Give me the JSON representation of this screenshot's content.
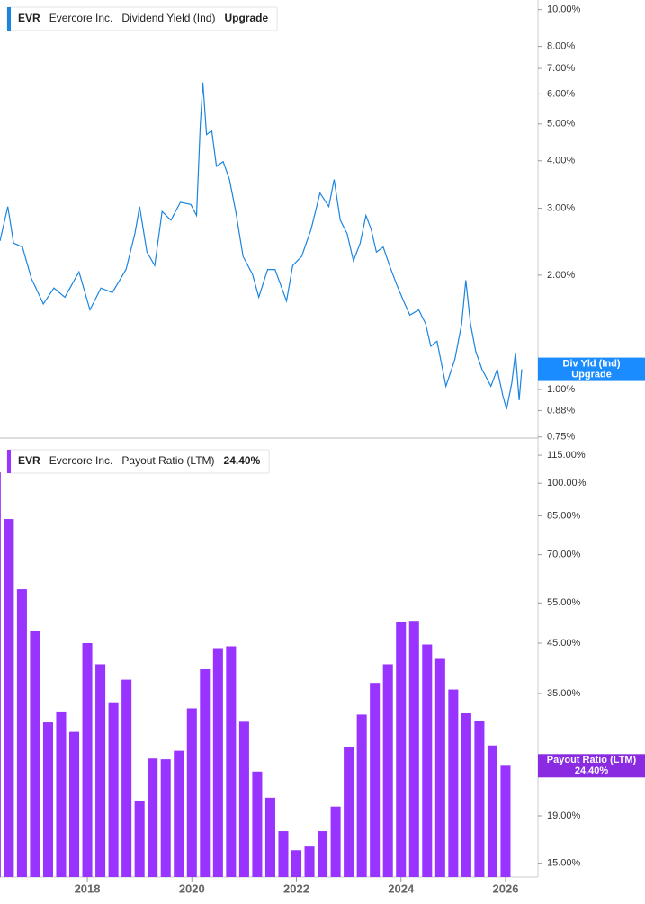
{
  "chart_data": [
    {
      "type": "line",
      "ticker": "EVR",
      "company": "Evercore Inc.",
      "legend_value": "Upgrade",
      "tag_label": "Div Yld (Ind)",
      "log_scale": true,
      "grid": false,
      "xlim": [
        2016.33,
        2026.62
      ],
      "ylim": [
        0.745,
        10.6
      ],
      "yticks": [
        {
          "value": 10,
          "label": "10.00%"
        },
        {
          "value": 8,
          "label": "8.00%"
        },
        {
          "value": 7,
          "label": "7.00%"
        },
        {
          "value": 6,
          "label": "6.00%"
        },
        {
          "value": 5,
          "label": "5.00%"
        },
        {
          "value": 4,
          "label": "4.00%"
        },
        {
          "value": 3,
          "label": "3.00%"
        },
        {
          "value": 2,
          "label": "2.00%"
        },
        {
          "value": 1,
          "label": "1.00%"
        },
        {
          "value": 0.88,
          "label": "0.88%"
        },
        {
          "value": 0.75,
          "label": "0.75%"
        }
      ],
      "x": [
        2016.33,
        2016.48,
        2016.59,
        2016.76,
        2016.93,
        2017.16,
        2017.36,
        2017.57,
        2017.84,
        2018.05,
        2018.26,
        2018.48,
        2018.74,
        2018.91,
        2019.0,
        2019.14,
        2019.29,
        2019.43,
        2019.6,
        2019.78,
        2019.98,
        2020.09,
        2020.16,
        2020.21,
        2020.28,
        2020.38,
        2020.47,
        2020.6,
        2020.72,
        2020.84,
        2020.98,
        2021.16,
        2021.28,
        2021.45,
        2021.59,
        2021.81,
        2021.93,
        2022.1,
        2022.28,
        2022.45,
        2022.62,
        2022.72,
        2022.84,
        2022.97,
        2023.09,
        2023.22,
        2023.33,
        2023.43,
        2023.53,
        2023.66,
        2023.78,
        2023.91,
        2024.05,
        2024.17,
        2024.34,
        2024.47,
        2024.57,
        2024.69,
        2024.86,
        2025.03,
        2025.16,
        2025.24,
        2025.33,
        2025.43,
        2025.55,
        2025.72,
        2025.84,
        2025.95,
        2026.02,
        2026.12,
        2026.19,
        2026.26,
        2026.31
      ],
      "series": [
        {
          "name": "Dividend Yield (Ind)",
          "color": "#1a84e0",
          "values": [
            2.46,
            3.03,
            2.43,
            2.37,
            1.96,
            1.68,
            1.85,
            1.75,
            2.04,
            1.62,
            1.85,
            1.8,
            2.07,
            2.57,
            3.03,
            2.3,
            2.12,
            2.94,
            2.79,
            3.11,
            3.07,
            2.87,
            4.95,
            6.43,
            4.69,
            4.8,
            3.87,
            3.98,
            3.57,
            2.94,
            2.24,
            2.01,
            1.75,
            2.07,
            2.07,
            1.71,
            2.12,
            2.24,
            2.64,
            3.29,
            3.03,
            3.57,
            2.79,
            2.57,
            2.18,
            2.43,
            2.87,
            2.64,
            2.3,
            2.37,
            2.12,
            1.9,
            1.71,
            1.57,
            1.62,
            1.49,
            1.3,
            1.34,
            1.02,
            1.2,
            1.49,
            1.94,
            1.49,
            1.26,
            1.13,
            1.02,
            1.13,
            0.96,
            0.887,
            1.04,
            1.25,
            0.937,
            1.13
          ]
        }
      ]
    },
    {
      "type": "bar",
      "ticker": "EVR",
      "company": "Evercore Inc.",
      "log_scale": true,
      "grid": false,
      "xlim": [
        2016.33,
        2026.62
      ],
      "xticks": [
        2018,
        2020,
        2022,
        2024,
        2026
      ],
      "ylim": [
        14,
        122.5
      ],
      "yticks": [
        {
          "value": 115,
          "label": "115.00%"
        },
        {
          "value": 100,
          "label": "100.00%"
        },
        {
          "value": 85,
          "label": "85.00%"
        },
        {
          "value": 70,
          "label": "70.00%"
        },
        {
          "value": 55,
          "label": "55.00%"
        },
        {
          "value": 45,
          "label": "45.00%"
        },
        {
          "value": 35,
          "label": "35.00%"
        },
        {
          "value": 19,
          "label": "19.00%"
        },
        {
          "value": 15,
          "label": "15.00%"
        }
      ],
      "x": [
        2016.25,
        2016.5,
        2016.75,
        2017.0,
        2017.25,
        2017.5,
        2017.75,
        2018.0,
        2018.25,
        2018.5,
        2018.75,
        2019.0,
        2019.25,
        2019.5,
        2019.75,
        2020.0,
        2020.25,
        2020.5,
        2020.75,
        2021.0,
        2021.25,
        2021.5,
        2021.75,
        2022.0,
        2022.25,
        2022.5,
        2022.75,
        2023.0,
        2023.25,
        2023.5,
        2023.75,
        2024.0,
        2024.25,
        2024.5,
        2024.75,
        2025.0,
        2025.25,
        2025.5,
        2025.75,
        2026.0
      ],
      "series": [
        {
          "name": "Payout Ratio (LTM)",
          "color": "#9933ff",
          "values": [
            105.6,
            83.6,
            58.9,
            47.9,
            30.3,
            32.0,
            28.9,
            45.0,
            40.5,
            33.5,
            37.5,
            20.5,
            25.3,
            25.2,
            26.3,
            32.5,
            39.5,
            43.9,
            44.3,
            30.4,
            23.7,
            20.8,
            17.6,
            16.0,
            16.3,
            17.6,
            19.9,
            26.8,
            31.5,
            36.9,
            40.5,
            50.1,
            50.3,
            44.7,
            41.6,
            35.7,
            31.7,
            30.5,
            27.0,
            24.4
          ],
          "value_labels": [
            null,
            null,
            null,
            null,
            null,
            null,
            null,
            null,
            null,
            null,
            null,
            null,
            null,
            null,
            null,
            null,
            null,
            null,
            null,
            null,
            null,
            null,
            null,
            null,
            null,
            null,
            null,
            null,
            null,
            null,
            null,
            null,
            null,
            null,
            null,
            null,
            null,
            null,
            null,
            "24.40%"
          ]
        }
      ]
    }
  ]
}
